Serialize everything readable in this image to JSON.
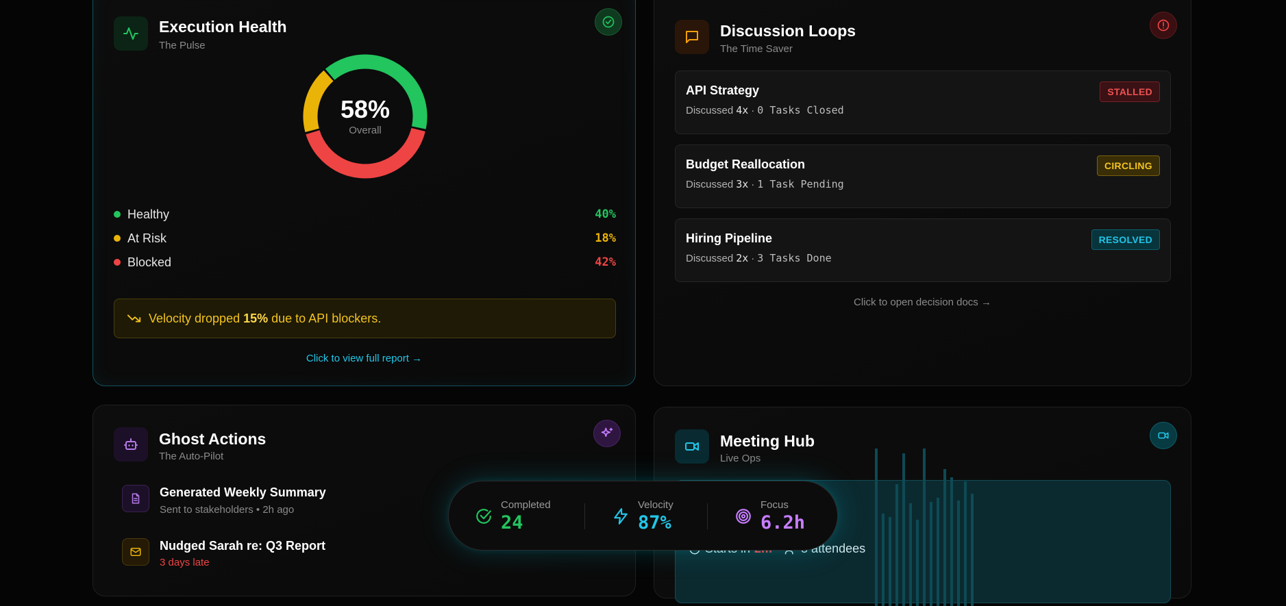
{
  "execution_health": {
    "title": "Execution Health",
    "subtitle": "The Pulse",
    "overall_pct": "58%",
    "overall_label": "Overall",
    "segments": [
      {
        "name": "Healthy",
        "value": 40,
        "label": "40%",
        "color": "#22c55e"
      },
      {
        "name": "At Risk",
        "value": 18,
        "label": "18%",
        "color": "#eab308"
      },
      {
        "name": "Blocked",
        "value": 42,
        "label": "42%",
        "color": "#ef4444"
      }
    ],
    "alert": {
      "prefix": "Velocity dropped",
      "highlight": "15%",
      "suffix": "due to API blockers."
    },
    "link": "Click to view full report →"
  },
  "discussion_loops": {
    "title": "Discussion Loops",
    "subtitle": "The Time Saver",
    "items": [
      {
        "title": "API Strategy",
        "discussed": "Discussed",
        "count": "4x",
        "detail": "0 Tasks Closed",
        "status": "STALLED",
        "status_color": "#ef4444"
      },
      {
        "title": "Budget Reallocation",
        "discussed": "Discussed",
        "count": "3x",
        "detail": "1 Task Pending",
        "status": "CIRCLING",
        "status_color": "#eab308"
      },
      {
        "title": "Hiring Pipeline",
        "discussed": "Discussed",
        "count": "2x",
        "detail": "3 Tasks Done",
        "status": "RESOLVED",
        "status_color": "#06b6d4"
      }
    ],
    "link": "Click to open decision docs →"
  },
  "ghost_actions": {
    "title": "Ghost Actions",
    "subtitle": "The Auto-Pilot",
    "items": [
      {
        "title": "Generated Weekly Summary",
        "sub": "Sent to stakeholders • 2h ago"
      },
      {
        "title": "Nudged Sarah re: Q3 Report",
        "sub": "3 days late"
      }
    ]
  },
  "meeting_hub": {
    "title": "Meeting Hub",
    "subtitle": "Live Ops",
    "starts_prefix": "Starts in",
    "starts_value": "2m",
    "attendees": "8 attendees"
  },
  "stats": {
    "completed": {
      "label": "Completed",
      "value": "24",
      "color": "#22c55e"
    },
    "velocity": {
      "label": "Velocity",
      "value": "87%",
      "color": "#22c6e8"
    },
    "focus": {
      "label": "Focus",
      "value": "6.2h",
      "color": "#c77dff"
    }
  }
}
